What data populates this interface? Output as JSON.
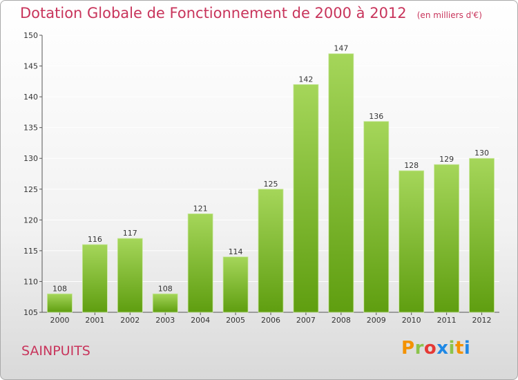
{
  "title": "Dotation Globale de Fonctionnement de 2000 à 2012",
  "unit": "(en milliers d'€)",
  "place": "SAINPUITS",
  "logo": {
    "text": "Proxiti",
    "colors": [
      "#f39200",
      "#8bc34a",
      "#e53935",
      "#1e88e5",
      "#8bc34a",
      "#f39200",
      "#1e88e5"
    ]
  },
  "colors": {
    "title": "#c8345b",
    "bar_light": "#a5d65a",
    "bar_dark": "#5f9e10",
    "axis": "#555555",
    "grid": "#ffffff"
  },
  "chart_data": {
    "type": "bar",
    "categories": [
      "2000",
      "2001",
      "2002",
      "2003",
      "2004",
      "2005",
      "2006",
      "2007",
      "2008",
      "2009",
      "2010",
      "2011",
      "2012"
    ],
    "values": [
      108,
      116,
      117,
      108,
      121,
      114,
      125,
      142,
      147,
      136,
      128,
      129,
      130
    ],
    "ylim": [
      105,
      150
    ],
    "yticks": [
      105,
      110,
      115,
      120,
      125,
      130,
      135,
      140,
      145,
      150
    ],
    "grid": true,
    "data_labels": true
  }
}
